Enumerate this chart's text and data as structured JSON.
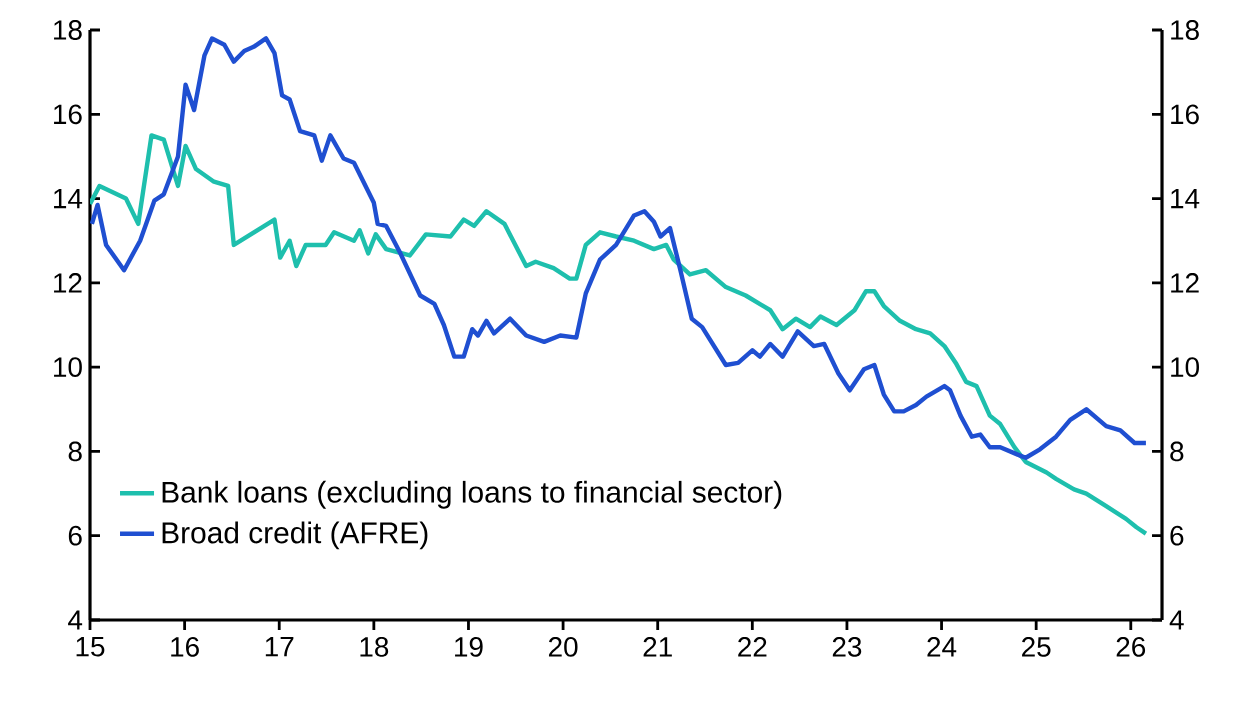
{
  "chart_data": {
    "type": "line",
    "series": [
      {
        "name": "Bank loans (excluding loans to financial sector)",
        "color": "#1ebfad",
        "x": [
          15.0,
          15.1,
          15.38,
          15.51,
          15.65,
          15.78,
          15.93,
          16.01,
          16.12,
          16.31,
          16.46,
          16.52,
          16.95,
          17.01,
          17.11,
          17.18,
          17.28,
          17.49,
          17.58,
          17.79,
          17.85,
          17.94,
          18.02,
          18.13,
          18.38,
          18.55,
          18.81,
          18.95,
          19.06,
          19.19,
          19.38,
          19.61,
          19.71,
          19.9,
          20.07,
          20.14,
          20.24,
          20.39,
          20.56,
          20.75,
          20.96,
          21.09,
          21.17,
          21.34,
          21.51,
          21.72,
          21.93,
          22.19,
          22.32,
          22.46,
          22.61,
          22.72,
          22.89,
          23.08,
          23.2,
          23.29,
          23.39,
          23.56,
          23.73,
          23.88,
          24.03,
          24.15,
          24.26,
          24.37,
          24.51,
          24.62,
          24.77,
          24.89,
          25.11,
          25.21,
          25.4,
          25.53,
          25.74,
          25.95,
          26.06,
          26.16
        ],
        "values": [
          13.87,
          14.3,
          14.0,
          13.4,
          15.5,
          15.4,
          14.3,
          15.25,
          14.7,
          14.4,
          14.3,
          12.9,
          13.5,
          12.6,
          13.0,
          12.4,
          12.9,
          12.9,
          13.2,
          13.0,
          13.25,
          12.7,
          13.15,
          12.8,
          12.65,
          13.15,
          13.1,
          13.5,
          13.35,
          13.7,
          13.4,
          12.4,
          12.5,
          12.35,
          12.1,
          12.1,
          12.9,
          13.2,
          13.1,
          13.0,
          12.8,
          12.9,
          12.55,
          12.2,
          12.3,
          11.9,
          11.7,
          11.35,
          10.9,
          11.15,
          10.95,
          11.2,
          11.0,
          11.35,
          11.8,
          11.8,
          11.45,
          11.1,
          10.9,
          10.8,
          10.5,
          10.1,
          9.65,
          9.55,
          8.85,
          8.65,
          8.1,
          7.75,
          7.5,
          7.35,
          7.1,
          7.0,
          6.7,
          6.4,
          6.2,
          6.05
        ]
      },
      {
        "name": "Broad credit (AFRE)",
        "color": "#1f4fd1",
        "x": [
          15.02,
          15.08,
          15.17,
          15.36,
          15.53,
          15.68,
          15.78,
          15.93,
          16.01,
          16.1,
          16.21,
          16.29,
          16.42,
          16.52,
          16.63,
          16.73,
          16.86,
          16.95,
          17.03,
          17.11,
          17.22,
          17.37,
          17.45,
          17.54,
          17.68,
          17.79,
          18.0,
          18.04,
          18.13,
          18.28,
          18.49,
          18.64,
          18.74,
          18.85,
          18.95,
          19.04,
          19.1,
          19.19,
          19.27,
          19.44,
          19.61,
          19.8,
          19.97,
          20.14,
          20.24,
          20.39,
          20.56,
          20.75,
          20.86,
          20.96,
          21.03,
          21.13,
          21.24,
          21.36,
          21.47,
          21.72,
          21.85,
          22.0,
          22.08,
          22.19,
          22.32,
          22.48,
          22.65,
          22.76,
          22.91,
          23.03,
          23.18,
          23.29,
          23.39,
          23.5,
          23.6,
          23.73,
          23.84,
          24.03,
          24.09,
          24.2,
          24.32,
          24.41,
          24.51,
          24.62,
          24.83,
          24.89,
          25.04,
          25.21,
          25.36,
          25.53,
          25.74,
          25.89,
          26.04,
          26.16
        ],
        "values": [
          13.4,
          13.85,
          12.9,
          12.3,
          13.0,
          13.95,
          14.1,
          15.0,
          16.7,
          16.1,
          17.4,
          17.8,
          17.65,
          17.25,
          17.5,
          17.6,
          17.8,
          17.45,
          16.45,
          16.35,
          15.6,
          15.5,
          14.9,
          15.5,
          14.95,
          14.85,
          13.9,
          13.4,
          13.35,
          12.7,
          11.7,
          11.5,
          11.0,
          10.25,
          10.25,
          10.9,
          10.75,
          11.1,
          10.8,
          11.15,
          10.75,
          10.6,
          10.75,
          10.7,
          11.75,
          12.55,
          12.9,
          13.6,
          13.7,
          13.45,
          13.1,
          13.3,
          12.3,
          11.15,
          10.95,
          10.05,
          10.1,
          10.4,
          10.25,
          10.55,
          10.25,
          10.85,
          10.5,
          10.55,
          9.85,
          9.45,
          9.95,
          10.05,
          9.35,
          8.95,
          8.95,
          9.1,
          9.3,
          9.55,
          9.45,
          8.85,
          8.35,
          8.4,
          8.1,
          8.1,
          7.9,
          7.85,
          8.05,
          8.35,
          8.75,
          9.0,
          8.6,
          8.5,
          8.2,
          8.2
        ]
      }
    ],
    "xlim": [
      15,
      26.33
    ],
    "xticks": [
      15,
      16,
      17,
      18,
      19,
      20,
      21,
      22,
      23,
      24,
      25,
      26
    ],
    "ylim": [
      4,
      18
    ],
    "yticks": [
      4,
      6,
      8,
      10,
      12,
      14,
      16,
      18
    ],
    "y2lim": [
      4,
      18
    ],
    "y2ticks": [
      4,
      6,
      8,
      10,
      12,
      14,
      16,
      18
    ],
    "legend": "bottom left",
    "line_style": "solid"
  }
}
